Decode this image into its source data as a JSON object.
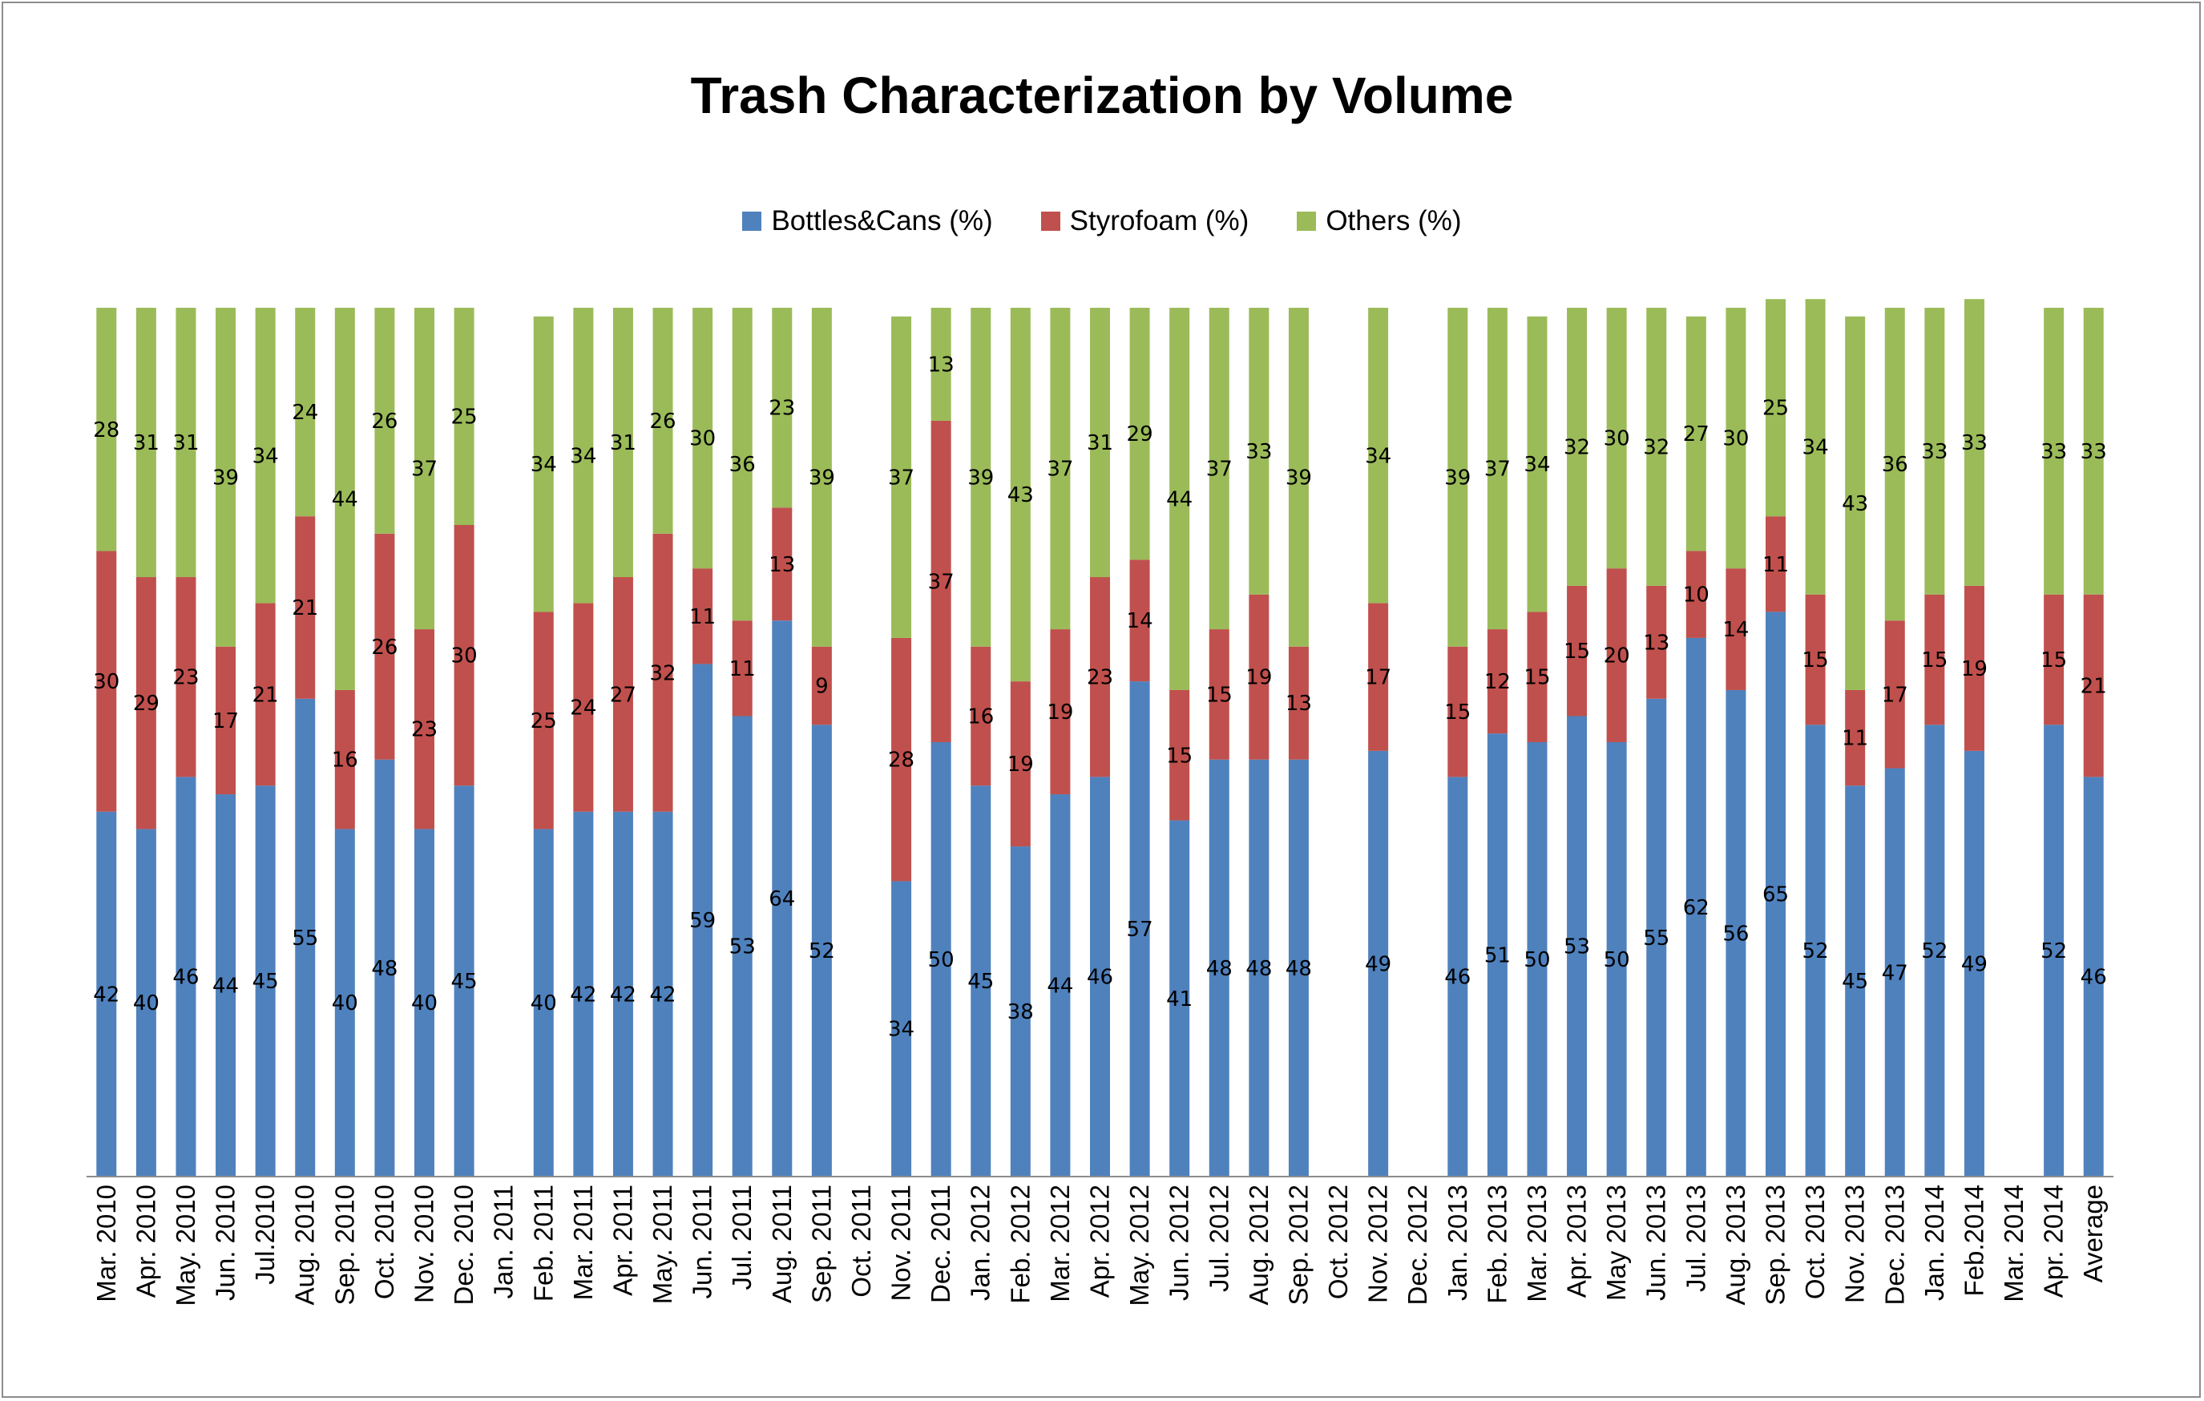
{
  "chart_data": {
    "type": "bar",
    "stacked": true,
    "title": "Trash Characterization by Volume",
    "xlabel": "",
    "ylabel": "",
    "ylim": [
      0,
      100
    ],
    "grid": false,
    "legend_position": "top-center",
    "categories": [
      "Mar. 2010",
      "Apr. 2010",
      "May. 2010",
      "Jun. 2010",
      "Jul.2010",
      "Aug. 2010",
      "Sep. 2010",
      "Oct. 2010",
      "Nov. 2010",
      "Dec. 2010",
      "Jan. 2011",
      "Feb. 2011",
      "Mar. 2011",
      "Apr. 2011",
      "May. 2011",
      "Jun. 2011",
      "Jul. 2011",
      "Aug. 2011",
      "Sep. 2011",
      "Oct. 2011",
      "Nov. 2011",
      "Dec. 2011",
      "Jan. 2012",
      "Feb. 2012",
      "Mar. 2012",
      "Apr. 2012",
      "May. 2012",
      "Jun. 2012",
      "Jul. 2012",
      "Aug. 2012",
      "Sep. 2012",
      "Oct. 2012",
      "Nov. 2012",
      "Dec. 2012",
      "Jan. 2013",
      "Feb. 2013",
      "Mar. 2013",
      "Apr. 2013",
      "May 2013",
      "Jun. 2013",
      "Jul. 2013",
      "Aug. 2013",
      "Sep. 2013",
      "Oct. 2013",
      "Nov. 2013",
      "Dec. 2013",
      "Jan. 2014",
      "Feb.2014",
      "Mar. 2014",
      "Apr. 2014",
      "Average"
    ],
    "series": [
      {
        "name": "Bottles&Cans (%)",
        "color": "#4f81bd",
        "values": [
          42,
          40,
          46,
          44,
          45,
          55,
          40,
          48,
          40,
          45,
          null,
          40,
          42,
          42,
          42,
          59,
          53,
          64,
          52,
          null,
          34,
          50,
          45,
          38,
          44,
          46,
          57,
          41,
          48,
          48,
          48,
          null,
          49,
          null,
          46,
          51,
          50,
          53,
          50,
          55,
          62,
          56,
          65,
          52,
          45,
          47,
          52,
          49,
          null,
          52,
          46
        ]
      },
      {
        "name": "Styrofoam (%)",
        "color": "#c0504d",
        "values": [
          30,
          29,
          23,
          17,
          21,
          21,
          16,
          26,
          23,
          30,
          null,
          25,
          24,
          27,
          32,
          11,
          11,
          13,
          9,
          null,
          28,
          37,
          16,
          19,
          19,
          23,
          14,
          15,
          15,
          19,
          13,
          null,
          17,
          null,
          15,
          12,
          15,
          15,
          20,
          13,
          10,
          14,
          11,
          15,
          11,
          17,
          15,
          19,
          null,
          15,
          21
        ]
      },
      {
        "name": "Others (%)",
        "color": "#9bbb59",
        "values": [
          28,
          31,
          31,
          39,
          34,
          24,
          44,
          26,
          37,
          25,
          null,
          34,
          34,
          31,
          26,
          30,
          36,
          23,
          39,
          null,
          37,
          13,
          39,
          43,
          37,
          31,
          29,
          44,
          37,
          33,
          39,
          null,
          34,
          null,
          39,
          37,
          34,
          32,
          30,
          32,
          27,
          30,
          25,
          34,
          43,
          36,
          33,
          33,
          null,
          33,
          33
        ]
      }
    ]
  }
}
